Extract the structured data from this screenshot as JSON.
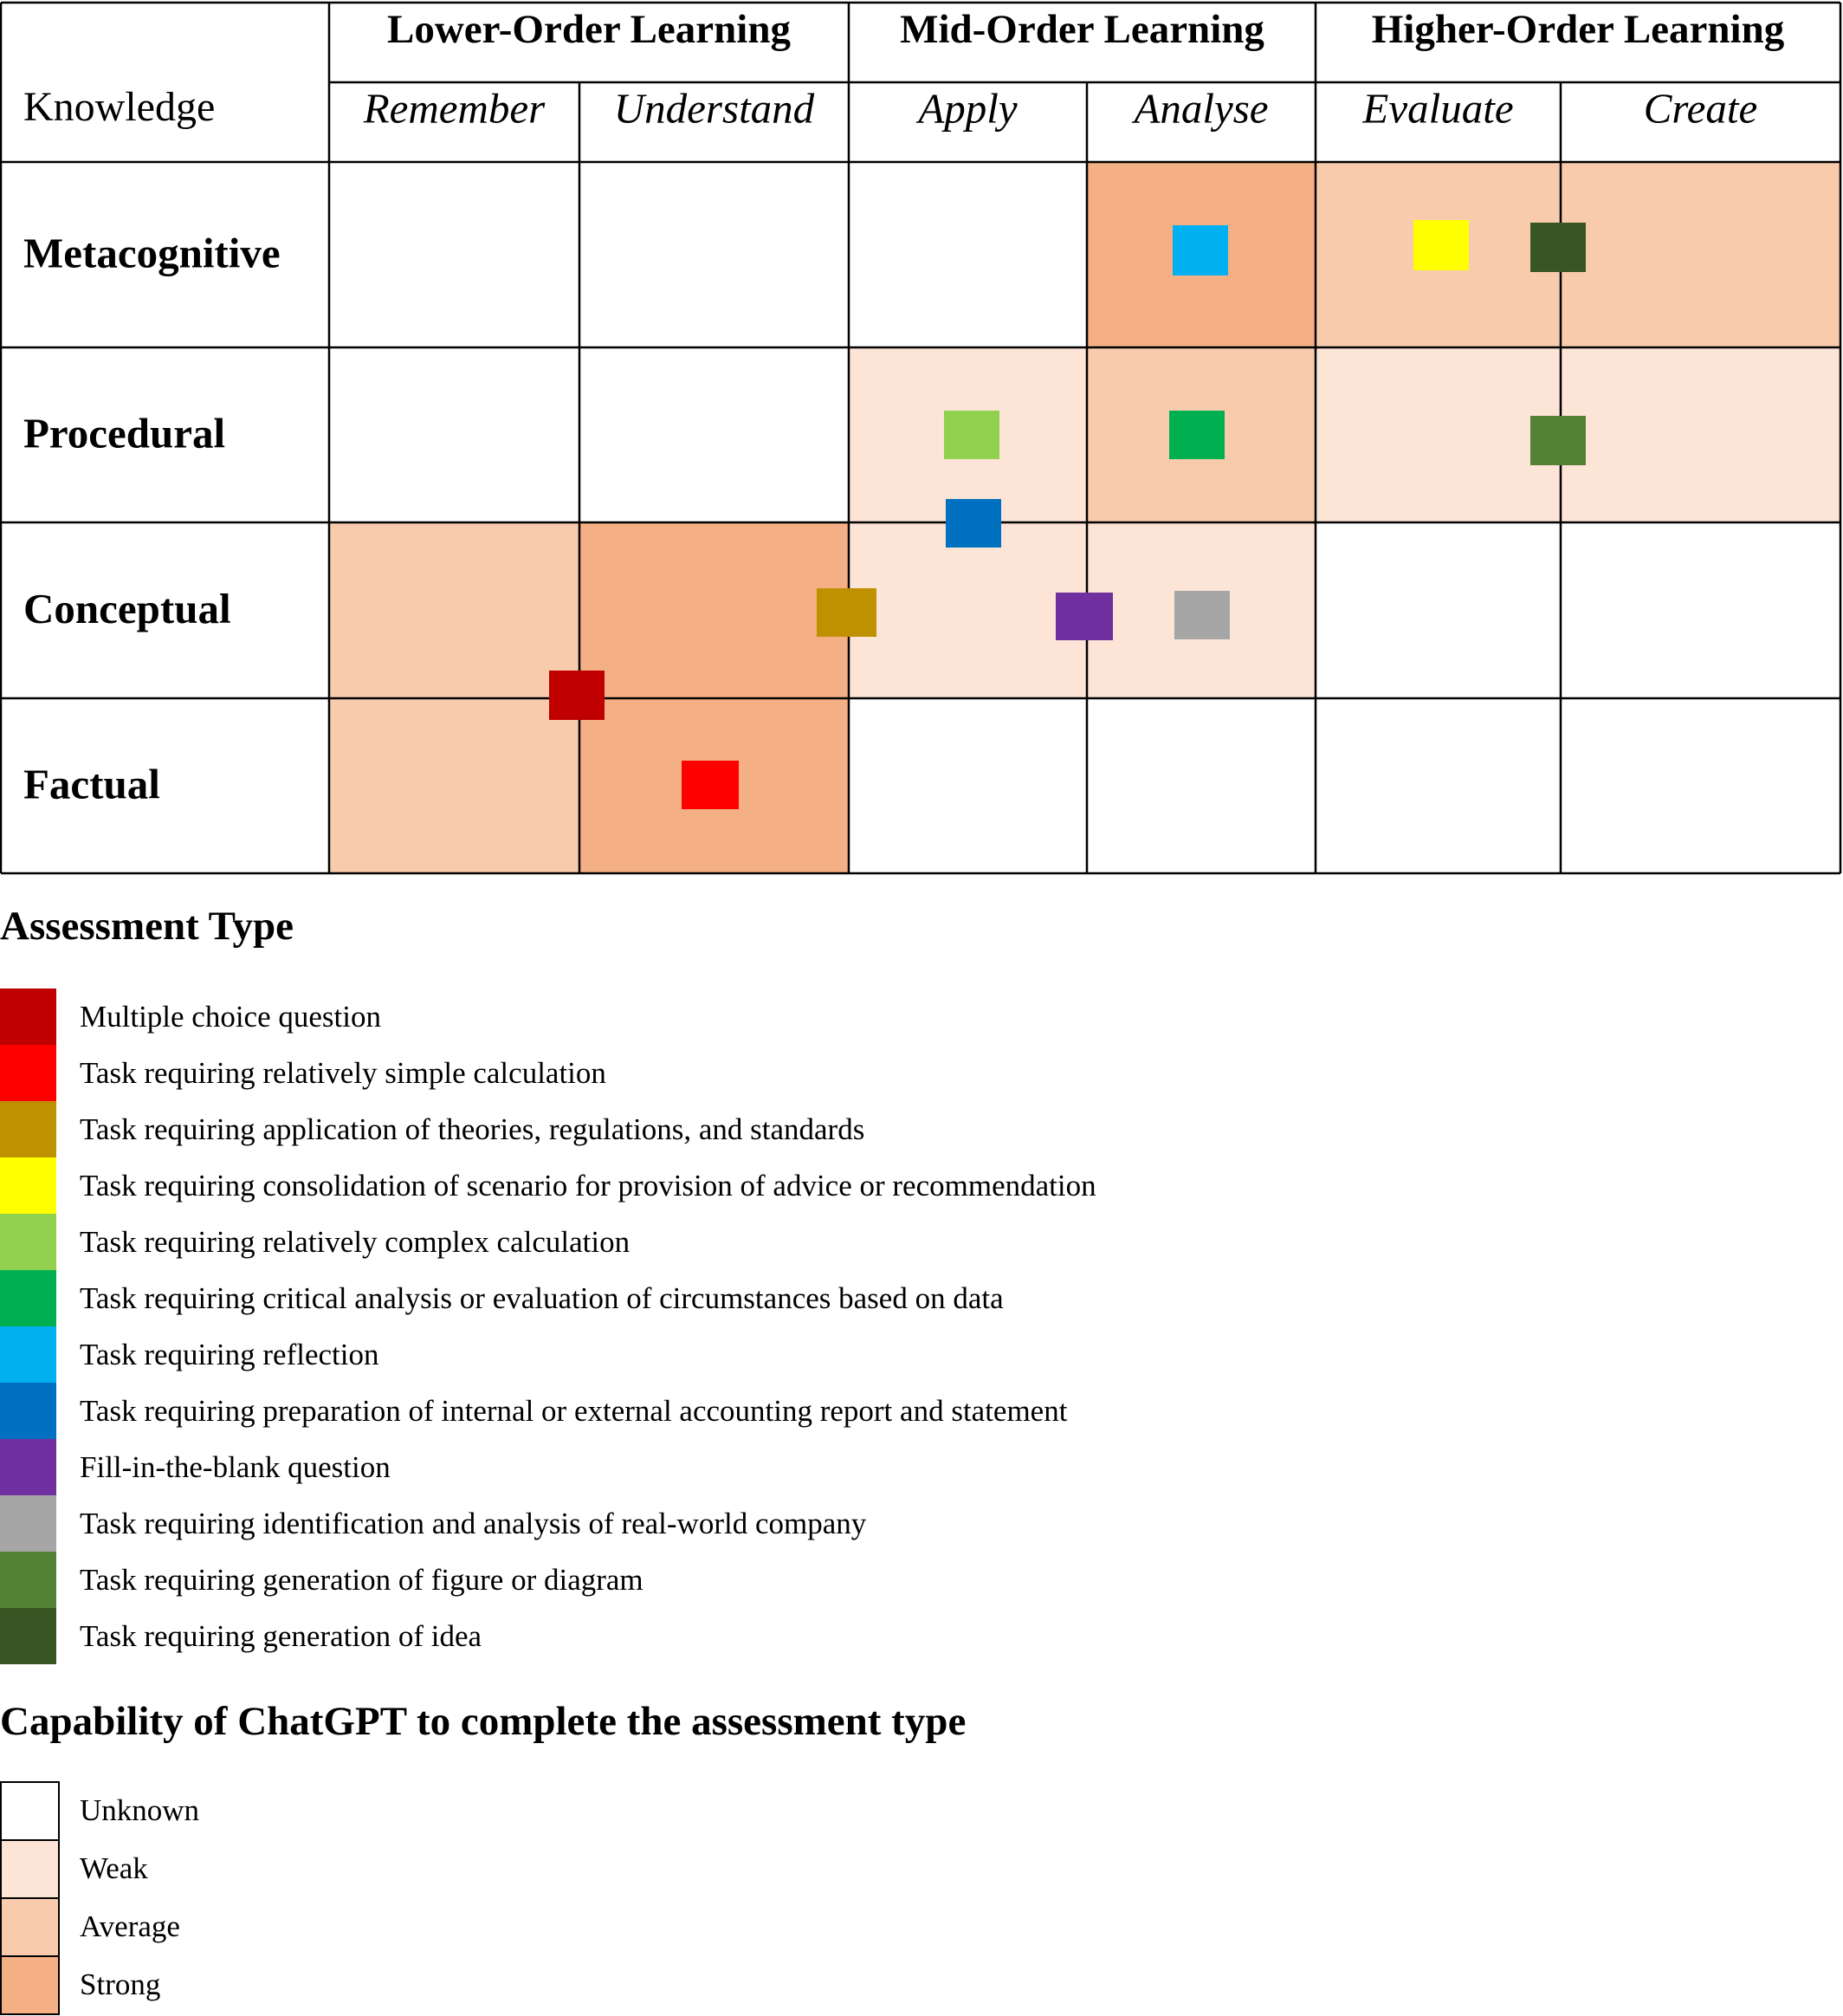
{
  "table": {
    "knowledge_header": "Knowledge",
    "groups": [
      "Lower-Order Learning",
      "Mid-Order Learning",
      "Higher-Order Learning"
    ],
    "columns": [
      "Remember",
      "Understand",
      "Apply",
      "Analyse",
      "Evaluate",
      "Create"
    ],
    "rows": [
      "Metacognitive",
      "Procedural",
      "Conceptual",
      "Factual"
    ],
    "cell_capability": [
      [
        "Unknown",
        "Unknown",
        "Unknown",
        "Strong",
        "Average",
        "Average"
      ],
      [
        "Unknown",
        "Unknown",
        "Weak",
        "Average",
        "Weak",
        "Weak"
      ],
      [
        "Average",
        "Strong",
        "Weak",
        "Weak",
        "Unknown",
        "Unknown"
      ],
      [
        "Average",
        "Strong",
        "Unknown",
        "Unknown",
        "Unknown",
        "Unknown"
      ]
    ]
  },
  "assessment_legend": {
    "title": "Assessment Type",
    "items": [
      {
        "label": "Multiple choice question",
        "color": "#C00000"
      },
      {
        "label": "Task requiring relatively simple calculation",
        "color": "#FF0000"
      },
      {
        "label": "Task requiring application of theories, regulations, and standards",
        "color": "#BF9000"
      },
      {
        "label": "Task requiring consolidation of scenario for provision of advice or recommendation",
        "color": "#FFFF00"
      },
      {
        "label": "Task requiring relatively complex calculation",
        "color": "#92D050"
      },
      {
        "label": "Task requiring critical analysis or evaluation of circumstances based on data",
        "color": "#00B050"
      },
      {
        "label": "Task requiring reflection",
        "color": "#00B0F0"
      },
      {
        "label": "Task requiring preparation of internal or external accounting report and statement",
        "color": "#0070C0"
      },
      {
        "label": "Fill-in-the-blank question",
        "color": "#7030A0"
      },
      {
        "label": "Task requiring identification and analysis of real-world company",
        "color": "#A6A6A6"
      },
      {
        "label": "Task requiring generation of figure or diagram",
        "color": "#548235"
      },
      {
        "label": "Task requiring generation of idea",
        "color": "#375623"
      }
    ]
  },
  "capability_legend": {
    "title": "Capability of ChatGPT to complete the assessment type",
    "levels": [
      {
        "label": "Unknown",
        "color": "#FFFFFF"
      },
      {
        "label": "Weak",
        "color": "#FCE4D6"
      },
      {
        "label": "Average",
        "color": "#F8CBAD"
      },
      {
        "label": "Strong",
        "color": "#F4B084"
      }
    ]
  },
  "markers": [
    {
      "assessment": "Task requiring reflection",
      "knowledge": "Metacognitive",
      "process": "Analyse"
    },
    {
      "assessment": "Task requiring consolidation of scenario for provision of advice or recommendation",
      "knowledge": "Metacognitive",
      "process": "Evaluate"
    },
    {
      "assessment": "Task requiring generation of idea",
      "knowledge": "Metacognitive",
      "process": "Evaluate / Create"
    },
    {
      "assessment": "Task requiring relatively complex calculation",
      "knowledge": "Procedural",
      "process": "Apply"
    },
    {
      "assessment": "Task requiring critical analysis or evaluation of circumstances based on data",
      "knowledge": "Procedural",
      "process": "Analyse"
    },
    {
      "assessment": "Task requiring generation of figure or diagram",
      "knowledge": "Procedural",
      "process": "Evaluate / Create"
    },
    {
      "assessment": "Task requiring preparation of internal or external accounting report and statement",
      "knowledge": "Procedural / Conceptual",
      "process": "Apply"
    },
    {
      "assessment": "Task requiring application of theories, regulations, and standards",
      "knowledge": "Conceptual",
      "process": "Understand / Apply"
    },
    {
      "assessment": "Fill-in-the-blank question",
      "knowledge": "Conceptual",
      "process": "Apply / Analyse"
    },
    {
      "assessment": "Task requiring identification and analysis of real-world company",
      "knowledge": "Conceptual",
      "process": "Analyse"
    },
    {
      "assessment": "Multiple choice question",
      "knowledge": "Conceptual / Factual",
      "process": "Remember / Understand"
    },
    {
      "assessment": "Task requiring relatively simple calculation",
      "knowledge": "Factual",
      "process": "Understand"
    }
  ]
}
